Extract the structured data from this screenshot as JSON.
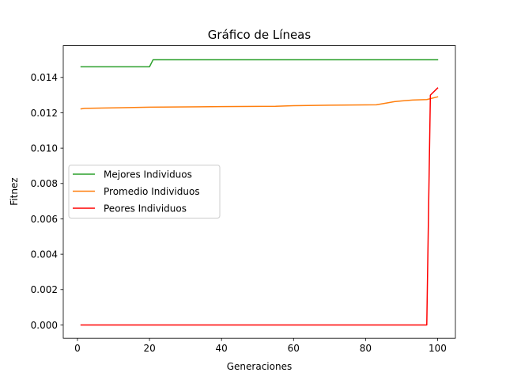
{
  "chart_data": {
    "type": "line",
    "title": "Gráfico de Líneas",
    "xlabel": "Generaciones",
    "ylabel": "Fitnez",
    "xlim": [
      -3.95,
      104.95
    ],
    "ylim": [
      -0.00075,
      0.0158
    ],
    "xticks": [
      0,
      20,
      40,
      60,
      80,
      100
    ],
    "xtick_labels": [
      "0",
      "20",
      "40",
      "60",
      "80",
      "100"
    ],
    "yticks": [
      0.0,
      0.002,
      0.004,
      0.006,
      0.008,
      0.01,
      0.012,
      0.014
    ],
    "ytick_labels": [
      "0.000",
      "0.002",
      "0.004",
      "0.006",
      "0.008",
      "0.010",
      "0.012",
      "0.014"
    ],
    "grid": false,
    "legend_position": "center-left",
    "series": [
      {
        "name": "Mejores Individuos",
        "color": "#2ca02c",
        "points": [
          [
            1,
            0.0146
          ],
          [
            20,
            0.0146
          ],
          [
            21,
            0.015
          ],
          [
            100,
            0.015
          ]
        ]
      },
      {
        "name": "Promedio Individuos",
        "color": "#ff7f0e",
        "points": [
          [
            1,
            0.01222
          ],
          [
            2,
            0.01225
          ],
          [
            10,
            0.01228
          ],
          [
            20,
            0.01232
          ],
          [
            40,
            0.01235
          ],
          [
            55,
            0.01237
          ],
          [
            60,
            0.0124
          ],
          [
            70,
            0.01243
          ],
          [
            83,
            0.01245
          ],
          [
            86,
            0.01256
          ],
          [
            88,
            0.01263
          ],
          [
            90,
            0.01267
          ],
          [
            93,
            0.01272
          ],
          [
            97,
            0.01275
          ],
          [
            100,
            0.0129
          ]
        ]
      },
      {
        "name": "Peores Individuos",
        "color": "#ff0000",
        "points": [
          [
            1,
            0.0
          ],
          [
            97,
            0.0
          ],
          [
            98,
            0.013
          ],
          [
            100,
            0.0134
          ]
        ]
      }
    ]
  }
}
